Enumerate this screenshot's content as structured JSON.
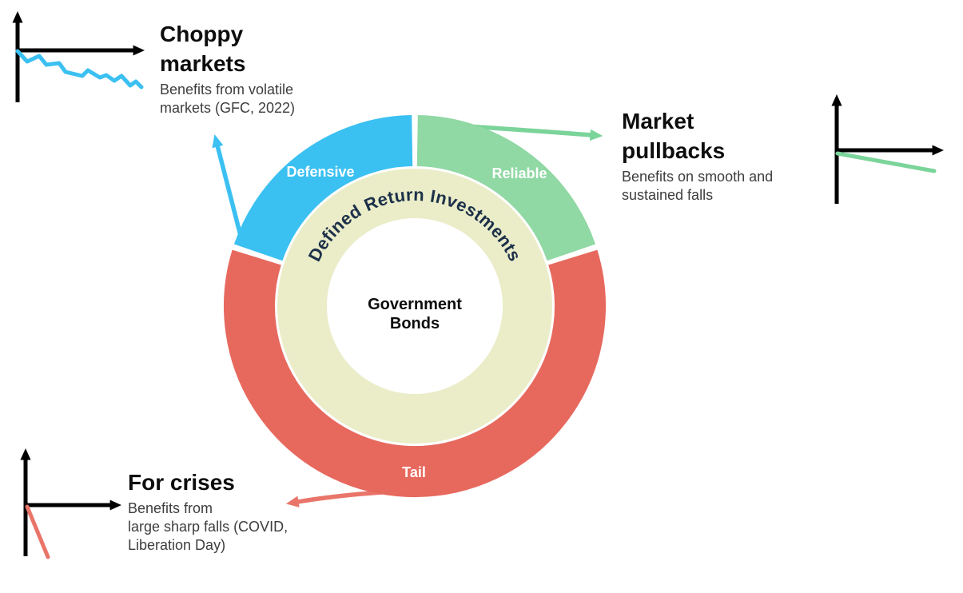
{
  "figure": {
    "title_implicit": "",
    "ring_label": "Defined Return Investments",
    "ring_color": "#eaedc8",
    "center_label_lines": [
      "Government",
      "Bonds"
    ],
    "segments": [
      {
        "id": "reliable",
        "label": "Reliable",
        "color": "#90d8a4",
        "start_deg": 0,
        "end_deg": 72,
        "share_pct": 20
      },
      {
        "id": "tail",
        "label": "Tail",
        "color": "#e7695e",
        "start_deg": 72,
        "end_deg": 288,
        "share_pct": 60
      },
      {
        "id": "defensive",
        "label": "Defensive",
        "color": "#3bc0f2",
        "start_deg": 288,
        "end_deg": 360,
        "share_pct": 20
      }
    ]
  },
  "chart_data": {
    "type": "pie",
    "categories": [
      "Reliable",
      "Tail",
      "Defensive"
    ],
    "values": [
      20,
      60,
      20
    ],
    "title": "Defined Return Investments",
    "center_label": "Government Bonds",
    "legend_position": "on-slice"
  },
  "annotations": {
    "choppy": {
      "title_lines": [
        "Choppy",
        "markets"
      ],
      "body_lines": [
        "Benefits from volatile",
        "markets (GFC, 2022)"
      ],
      "accent_color": "#3bc0f2",
      "sketch": "jagged-decline"
    },
    "pullbacks": {
      "title_lines": [
        "Market",
        "pullbacks"
      ],
      "body_lines": [
        "Benefits on smooth and",
        "sustained falls"
      ],
      "accent_color": "#7bd49a",
      "sketch": "gentle-decline"
    },
    "crises": {
      "title_lines": [
        "For crises"
      ],
      "body_lines": [
        "Benefits from",
        "large sharp falls (COVID,",
        "Liberation Day)"
      ],
      "accent_color": "#e9756a",
      "sketch": "steep-decline"
    }
  }
}
